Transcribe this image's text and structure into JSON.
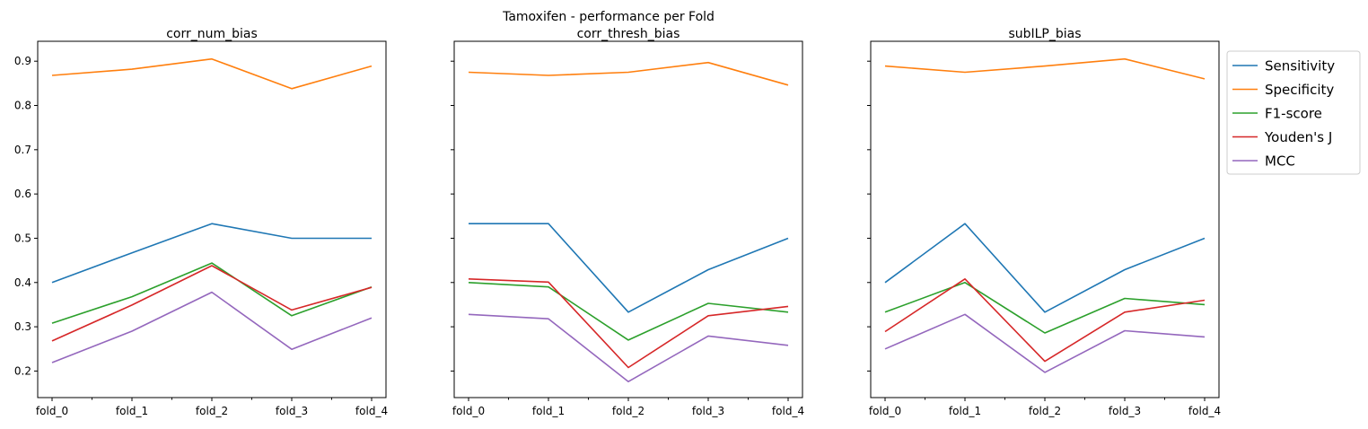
{
  "figure_title": "Tamoxifen - performance per Fold",
  "chart_data": {
    "type": "line",
    "categories": [
      "fold_0",
      "fold_1",
      "fold_2",
      "fold_3",
      "fold_4"
    ],
    "ylim": [
      0.14,
      0.945
    ],
    "yticks": [
      0.2,
      0.3,
      0.4,
      0.5,
      0.6,
      0.7,
      0.8,
      0.9
    ],
    "ytick_labels": [
      "0.2",
      "0.3",
      "0.4",
      "0.5",
      "0.6",
      "0.7",
      "0.8",
      "0.9"
    ],
    "shared_y": true,
    "grid": false,
    "legend": "outside-right-top",
    "legend_entries": [
      "Sensitivity",
      "Specificity",
      "F1-score",
      "Youden's J",
      "MCC"
    ],
    "colors": {
      "Sensitivity": "#1f77b4",
      "Specificity": "#ff7f0e",
      "F1-score": "#2ca02c",
      "Youden's J": "#d62728",
      "MCC": "#9467bd"
    },
    "panels": [
      {
        "title": "corr_num_bias",
        "series": [
          {
            "name": "Sensitivity",
            "values": [
              0.4,
              0.467,
              0.533,
              0.5,
              0.5
            ]
          },
          {
            "name": "Specificity",
            "values": [
              0.868,
              0.882,
              0.905,
              0.838,
              0.889
            ]
          },
          {
            "name": "F1-score",
            "values": [
              0.308,
              0.368,
              0.444,
              0.325,
              0.39
            ]
          },
          {
            "name": "Youden's J",
            "values": [
              0.268,
              0.349,
              0.438,
              0.338,
              0.389
            ]
          },
          {
            "name": "MCC",
            "values": [
              0.219,
              0.29,
              0.378,
              0.249,
              0.32
            ]
          }
        ]
      },
      {
        "title": "corr_thresh_bias",
        "series": [
          {
            "name": "Sensitivity",
            "values": [
              0.533,
              0.533,
              0.333,
              0.429,
              0.5
            ]
          },
          {
            "name": "Specificity",
            "values": [
              0.875,
              0.868,
              0.875,
              0.897,
              0.846
            ]
          },
          {
            "name": "F1-score",
            "values": [
              0.4,
              0.39,
              0.27,
              0.353,
              0.333
            ]
          },
          {
            "name": "Youden's J",
            "values": [
              0.408,
              0.401,
              0.208,
              0.325,
              0.346
            ]
          },
          {
            "name": "MCC",
            "values": [
              0.328,
              0.318,
              0.176,
              0.279,
              0.258
            ]
          }
        ]
      },
      {
        "title": "subILP_bias",
        "series": [
          {
            "name": "Sensitivity",
            "values": [
              0.4,
              0.533,
              0.333,
              0.429,
              0.5
            ]
          },
          {
            "name": "Specificity",
            "values": [
              0.889,
              0.875,
              0.889,
              0.905,
              0.86
            ]
          },
          {
            "name": "F1-score",
            "values": [
              0.333,
              0.4,
              0.286,
              0.364,
              0.35
            ]
          },
          {
            "name": "Youden's J",
            "values": [
              0.289,
              0.408,
              0.222,
              0.333,
              0.36
            ]
          },
          {
            "name": "MCC",
            "values": [
              0.25,
              0.328,
              0.197,
              0.291,
              0.277
            ]
          }
        ]
      }
    ]
  }
}
